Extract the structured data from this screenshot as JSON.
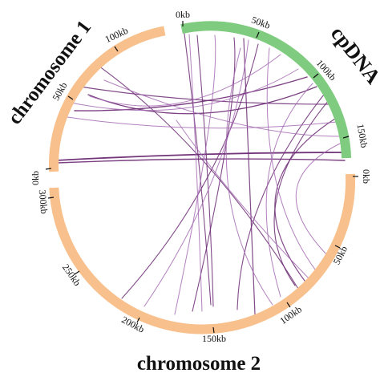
{
  "figure": {
    "segments": [
      {
        "id": "chr1",
        "label": "chromosome 1",
        "color": "#F8C08C",
        "ticks": [
          "0kb",
          "50kb",
          "100kb"
        ]
      },
      {
        "id": "cpdna",
        "label": "cpDNA",
        "color": "#7FCB7F",
        "ticks": [
          "0kb",
          "50kb",
          "100kb",
          "150kb"
        ]
      },
      {
        "id": "chr2",
        "label": "chromosome 2",
        "color": "#F8C08C",
        "ticks": [
          "0kb",
          "50kb",
          "100kb",
          "150kb",
          "200kb",
          "250kb",
          "300kb"
        ]
      }
    ],
    "link_colors": [
      "#6B2A73",
      "#A56BB3"
    ]
  }
}
